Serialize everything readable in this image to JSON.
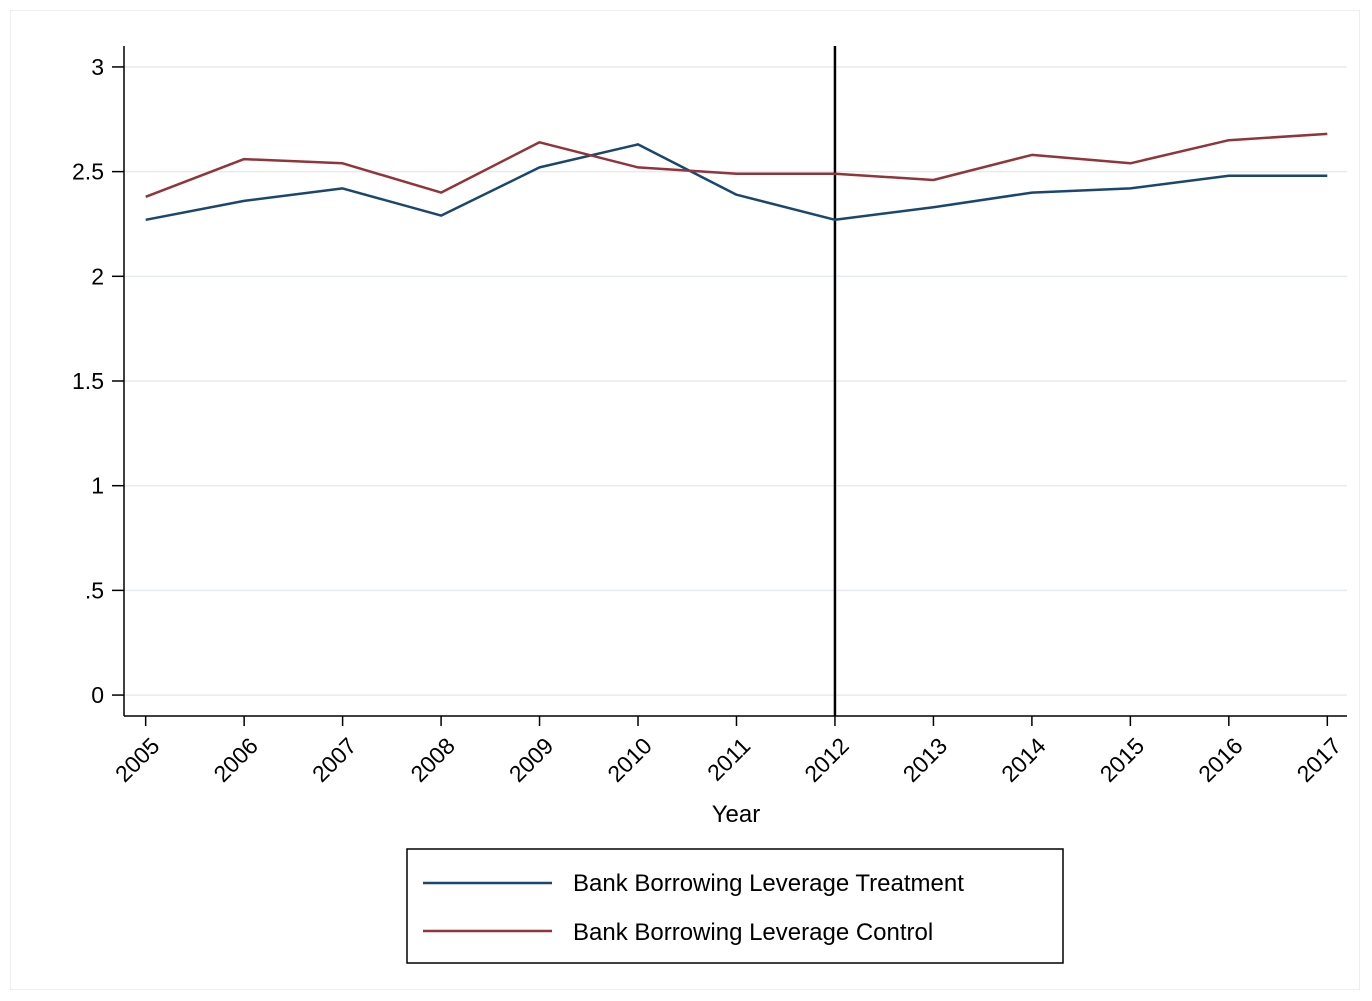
{
  "chart_data": {
    "type": "line",
    "title": "",
    "xlabel": "Year",
    "ylabel": "",
    "x": [
      2005,
      2006,
      2007,
      2008,
      2009,
      2010,
      2011,
      2012,
      2013,
      2014,
      2015,
      2016,
      2017
    ],
    "x_tick_labels": [
      "2005",
      "2006",
      "2007",
      "2008",
      "2009",
      "2010",
      "2011",
      "2012",
      "2013",
      "2014",
      "2015",
      "2016",
      "2017"
    ],
    "y_ticks": [
      0,
      0.5,
      1,
      1.5,
      2,
      2.5,
      3
    ],
    "y_tick_labels": [
      "0",
      ".5",
      "1",
      "1.5",
      "2",
      "2.5",
      "3"
    ],
    "ylim": [
      -0.1,
      3.1
    ],
    "xlim": [
      2004.78,
      2017.2
    ],
    "grid": true,
    "legend_position": "bottom",
    "reference_line": {
      "axis": "x",
      "value": 2012,
      "color": "#000000"
    },
    "series": [
      {
        "name": "Bank Borrowing Leverage Treatment",
        "color": "#1a476f",
        "values": [
          2.27,
          2.36,
          2.42,
          2.29,
          2.52,
          2.63,
          2.39,
          2.27,
          2.33,
          2.4,
          2.42,
          2.48,
          2.48
        ]
      },
      {
        "name": "Bank Borrowing Leverage Control",
        "color": "#90353b",
        "values": [
          2.38,
          2.56,
          2.54,
          2.4,
          2.64,
          2.52,
          2.49,
          2.49,
          2.46,
          2.58,
          2.54,
          2.65,
          2.68
        ]
      }
    ]
  }
}
